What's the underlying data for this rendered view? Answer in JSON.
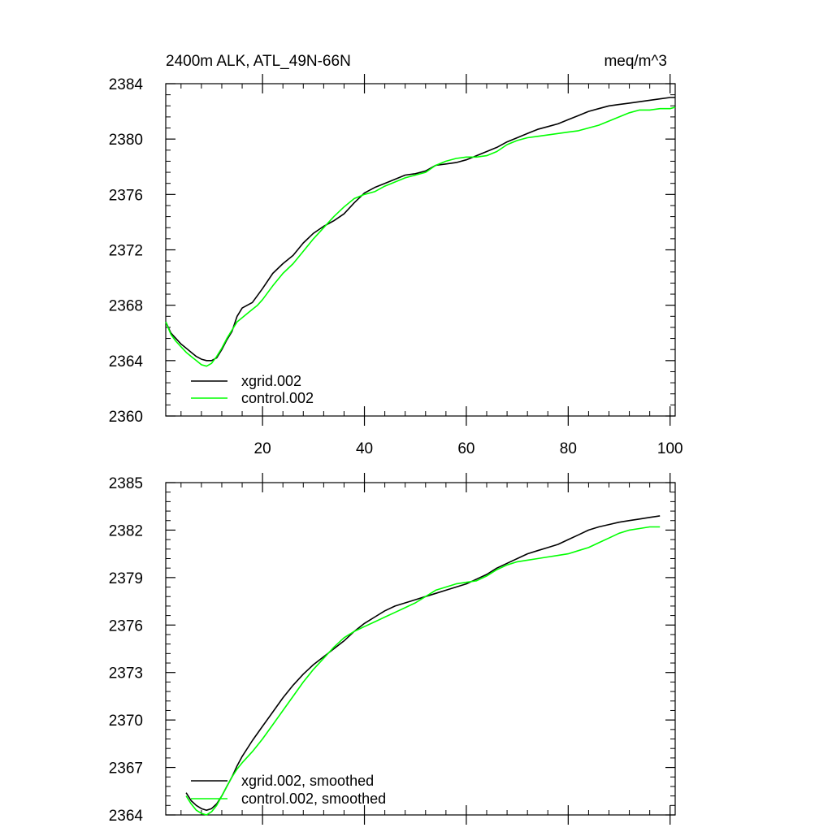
{
  "chart_data": [
    {
      "type": "line",
      "title": "2400m ALK, ATL_49N-66N",
      "units": "meq/m^3",
      "xlim": [
        1,
        101
      ],
      "ylim": [
        2360,
        2384
      ],
      "xticks": [
        20,
        40,
        60,
        80,
        100
      ],
      "xtick_labels": [
        "20",
        "40",
        "60",
        "80",
        "100"
      ],
      "yticks": [
        2360,
        2364,
        2368,
        2372,
        2376,
        2380,
        2384
      ],
      "ytick_labels": [
        "2360",
        "2364",
        "2368",
        "2372",
        "2376",
        "2380",
        "2384"
      ],
      "legend_position": "bottom-left",
      "series": [
        {
          "name": "xgrid.002",
          "color": "#000000",
          "x": [
            1,
            2,
            3,
            4,
            5,
            6,
            7,
            8,
            9,
            10,
            11,
            12,
            13,
            14,
            15,
            16,
            17,
            18,
            19,
            20,
            22,
            24,
            26,
            28,
            30,
            32,
            34,
            36,
            38,
            40,
            42,
            44,
            46,
            48,
            50,
            52,
            54,
            56,
            58,
            60,
            62,
            64,
            66,
            68,
            70,
            72,
            74,
            76,
            78,
            80,
            82,
            84,
            86,
            88,
            90,
            92,
            94,
            96,
            98,
            100,
            101
          ],
          "values": [
            2366.8,
            2366.0,
            2365.6,
            2365.2,
            2364.9,
            2364.6,
            2364.3,
            2364.1,
            2364.0,
            2364.0,
            2364.2,
            2364.8,
            2365.5,
            2366.1,
            2367.2,
            2367.8,
            2368.0,
            2368.2,
            2368.7,
            2369.2,
            2370.3,
            2371.0,
            2371.6,
            2372.5,
            2373.2,
            2373.7,
            2374.1,
            2374.6,
            2375.4,
            2376.1,
            2376.5,
            2376.8,
            2377.1,
            2377.4,
            2377.5,
            2377.7,
            2378.1,
            2378.2,
            2378.3,
            2378.5,
            2378.8,
            2379.1,
            2379.4,
            2379.8,
            2380.1,
            2380.4,
            2380.7,
            2380.9,
            2381.1,
            2381.4,
            2381.7,
            2382.0,
            2382.2,
            2382.4,
            2382.5,
            2382.6,
            2382.7,
            2382.8,
            2382.9,
            2383.0,
            2383.0
          ]
        },
        {
          "name": "control.002",
          "color": "#00ff00",
          "x": [
            1,
            2,
            3,
            4,
            5,
            6,
            7,
            8,
            9,
            10,
            11,
            12,
            13,
            14,
            15,
            16,
            17,
            18,
            19,
            20,
            22,
            24,
            26,
            28,
            30,
            32,
            34,
            36,
            38,
            40,
            42,
            44,
            46,
            48,
            50,
            52,
            54,
            56,
            58,
            60,
            62,
            64,
            66,
            68,
            70,
            72,
            74,
            76,
            78,
            80,
            82,
            84,
            86,
            88,
            90,
            92,
            94,
            96,
            98,
            100,
            101
          ],
          "values": [
            2366.8,
            2365.9,
            2365.4,
            2365.0,
            2364.6,
            2364.3,
            2364.0,
            2363.7,
            2363.6,
            2363.8,
            2364.3,
            2364.9,
            2365.6,
            2366.2,
            2366.8,
            2367.1,
            2367.4,
            2367.7,
            2368.0,
            2368.4,
            2369.4,
            2370.3,
            2371.0,
            2371.9,
            2372.8,
            2373.6,
            2374.4,
            2375.1,
            2375.7,
            2376.0,
            2376.2,
            2376.6,
            2376.9,
            2377.2,
            2377.4,
            2377.6,
            2378.1,
            2378.4,
            2378.6,
            2378.7,
            2378.7,
            2378.8,
            2379.1,
            2379.6,
            2379.9,
            2380.1,
            2380.2,
            2380.3,
            2380.4,
            2380.5,
            2380.6,
            2380.8,
            2381.0,
            2381.3,
            2381.6,
            2381.9,
            2382.1,
            2382.1,
            2382.2,
            2382.2,
            2382.3
          ]
        }
      ]
    },
    {
      "type": "line",
      "title": "",
      "xlim": [
        1,
        101
      ],
      "ylim": [
        2364,
        2385
      ],
      "xticks": [
        20,
        40,
        60,
        80,
        100
      ],
      "xtick_labels": [],
      "yticks": [
        2364,
        2367,
        2370,
        2373,
        2376,
        2379,
        2382,
        2385
      ],
      "ytick_labels": [
        "2364",
        "2367",
        "2370",
        "2373",
        "2376",
        "2379",
        "2382",
        "2385"
      ],
      "legend_position": "bottom-left",
      "series": [
        {
          "name": "xgrid.002, smoothed",
          "color": "#000000",
          "x": [
            5,
            6,
            7,
            8,
            9,
            10,
            11,
            12,
            13,
            14,
            15,
            16,
            18,
            20,
            22,
            24,
            26,
            28,
            30,
            32,
            34,
            36,
            38,
            40,
            42,
            44,
            46,
            48,
            50,
            52,
            54,
            56,
            58,
            60,
            62,
            64,
            66,
            68,
            70,
            72,
            74,
            76,
            78,
            80,
            82,
            84,
            86,
            88,
            90,
            92,
            94,
            96,
            98
          ],
          "values": [
            2365.4,
            2364.9,
            2364.6,
            2364.4,
            2364.3,
            2364.4,
            2364.7,
            2365.2,
            2365.8,
            2366.4,
            2367.1,
            2367.7,
            2368.7,
            2369.6,
            2370.5,
            2371.4,
            2372.2,
            2372.9,
            2373.5,
            2374.0,
            2374.5,
            2375.0,
            2375.6,
            2376.1,
            2376.5,
            2376.9,
            2377.2,
            2377.4,
            2377.6,
            2377.8,
            2378.0,
            2378.2,
            2378.4,
            2378.6,
            2378.9,
            2379.2,
            2379.6,
            2379.9,
            2380.2,
            2380.5,
            2380.7,
            2380.9,
            2381.1,
            2381.4,
            2381.7,
            2382.0,
            2382.2,
            2382.35,
            2382.5,
            2382.6,
            2382.7,
            2382.8,
            2382.9
          ]
        },
        {
          "name": "control.002, smoothed",
          "color": "#00ff00",
          "x": [
            5,
            6,
            7,
            8,
            9,
            10,
            11,
            12,
            13,
            14,
            15,
            16,
            18,
            20,
            22,
            24,
            26,
            28,
            30,
            32,
            34,
            36,
            38,
            40,
            42,
            44,
            46,
            48,
            50,
            52,
            54,
            56,
            58,
            60,
            62,
            64,
            66,
            68,
            70,
            72,
            74,
            76,
            78,
            80,
            82,
            84,
            86,
            88,
            90,
            92,
            94,
            96,
            98
          ],
          "values": [
            2365.2,
            2364.7,
            2364.3,
            2364.1,
            2364.0,
            2364.2,
            2364.6,
            2365.2,
            2365.8,
            2366.4,
            2366.9,
            2367.3,
            2368.0,
            2368.8,
            2369.7,
            2370.6,
            2371.5,
            2372.4,
            2373.2,
            2373.9,
            2374.6,
            2375.2,
            2375.6,
            2375.9,
            2376.2,
            2376.5,
            2376.8,
            2377.1,
            2377.4,
            2377.8,
            2378.2,
            2378.4,
            2378.6,
            2378.7,
            2378.8,
            2379.1,
            2379.5,
            2379.8,
            2380.0,
            2380.1,
            2380.2,
            2380.3,
            2380.4,
            2380.5,
            2380.7,
            2380.9,
            2381.2,
            2381.5,
            2381.8,
            2382.0,
            2382.1,
            2382.2,
            2382.2
          ]
        }
      ]
    }
  ]
}
